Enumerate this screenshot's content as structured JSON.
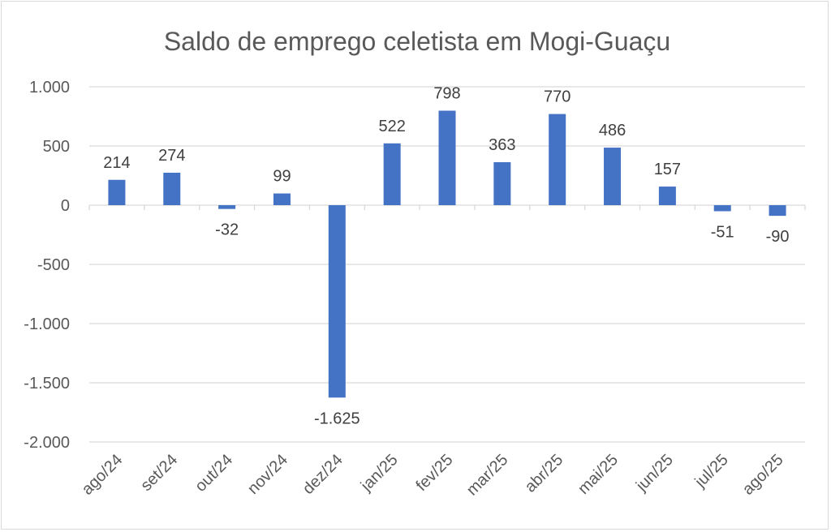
{
  "chart_data": {
    "type": "bar",
    "title": "Saldo de emprego celetista em Mogi-Guaçu",
    "xlabel": "",
    "ylabel": "",
    "categories": [
      "ago/24",
      "set/24",
      "out/24",
      "nov/24",
      "dez/24",
      "jan/25",
      "fev/25",
      "mar/25",
      "abr/25",
      "mai/25",
      "jun/25",
      "jul/25",
      "ago/25"
    ],
    "values": [
      214,
      274,
      -32,
      99,
      -1625,
      522,
      798,
      363,
      770,
      486,
      157,
      -51,
      -90
    ],
    "data_labels": [
      "214",
      "274",
      "-32",
      "99",
      "-1.625",
      "522",
      "798",
      "363",
      "770",
      "486",
      "157",
      "-51",
      "-90"
    ],
    "ylim": [
      -2000,
      1000
    ],
    "yticks": [
      1000,
      500,
      0,
      -500,
      -1000,
      -1500,
      -2000
    ],
    "ytick_labels": [
      "1.000",
      "500",
      "0",
      "-500",
      "-1.000",
      "-1.500",
      "-2.000"
    ],
    "grid": true,
    "bar_color": "#4472C4",
    "grid_color": "#d9d9d9",
    "legend": "none"
  }
}
